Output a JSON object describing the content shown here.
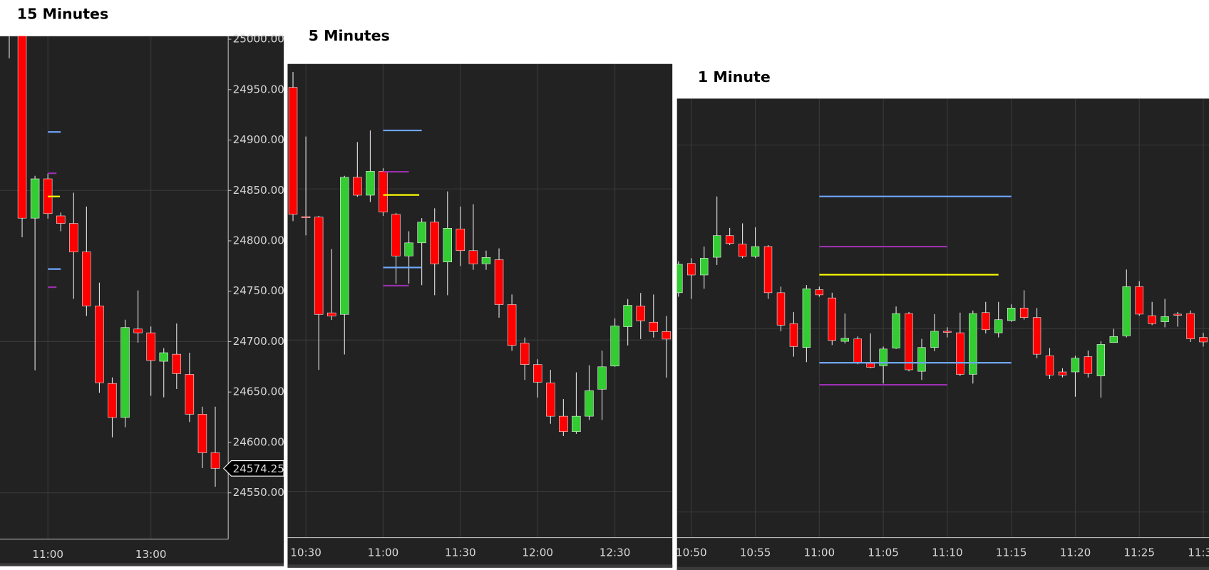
{
  "chart_data": [
    {
      "type": "candlestick",
      "title": "15 Minutes",
      "categories": [
        null,
        null,
        null,
        "11:00",
        null,
        null,
        null,
        null,
        null,
        null,
        null,
        "13:00",
        null,
        null,
        null,
        null,
        null
      ],
      "open": [
        25060,
        25020,
        24822.5,
        24861.5,
        24824.75,
        24817.25,
        24789,
        24735.5,
        24658.5,
        24624.75,
        24712.5,
        24708.75,
        24680.5,
        24687.5,
        24667.5,
        24628,
        24589.75
      ],
      "high": [
        25080,
        25030,
        24864.5,
        24866.75,
        24828,
        24847.75,
        24834,
        24758.5,
        24664.5,
        24721.75,
        24750.75,
        24715,
        24693.5,
        24718,
        24689,
        24635.5,
        24635.5
      ],
      "low": [
        24981,
        24803.5,
        24671.5,
        24822,
        24809.5,
        24742.5,
        24725.5,
        24649.25,
        24605,
        24615,
        24699,
        24646.25,
        24644.75,
        24653,
        24620.25,
        24574.5,
        24556
      ],
      "close": [
        25020,
        24822.5,
        24861.5,
        24827,
        24817.25,
        24789,
        24735.5,
        24659.25,
        24624.75,
        24714,
        24708.75,
        24681.25,
        24689,
        24668.25,
        24628,
        24589.75,
        24574.25
      ],
      "up_color": "#33cc33",
      "down_color": "#ff0000",
      "ylim": [
        24504,
        25003
      ],
      "yticks": [
        {
          "value": 24550,
          "label": "24550.00"
        },
        {
          "value": 24600,
          "label": "24600.00"
        },
        {
          "value": 24650,
          "label": "24650.00"
        },
        {
          "value": 24700,
          "label": "24700.00"
        },
        {
          "value": 24750,
          "label": "24750.00"
        },
        {
          "value": 24800,
          "label": "24800.00"
        },
        {
          "value": 24850,
          "label": "24850.00"
        },
        {
          "value": 24900,
          "label": "24900.00"
        },
        {
          "value": 24950,
          "label": "24950.00"
        },
        {
          "value": 25000,
          "label": "25000.00"
        }
      ],
      "grid_lines": [
        24550,
        24700,
        24850
      ],
      "last_price": 24574.25,
      "levels": [
        {
          "color": "#6ea8ff",
          "value": 24908,
          "x": [
            3,
            4
          ]
        },
        {
          "color": "#6ea8ff",
          "value": 24772,
          "x": [
            3,
            4
          ]
        },
        {
          "color": "#9b30b0",
          "value": 24867,
          "x": [
            3,
            3.67
          ]
        },
        {
          "color": "#9b30b0",
          "value": 24754,
          "x": [
            3,
            3.67
          ]
        },
        {
          "color": "#ffff00",
          "value": 24844,
          "x": [
            3,
            3.93
          ]
        }
      ]
    },
    {
      "type": "candlestick",
      "title": "5 Minutes",
      "categories": [
        null,
        "10:30",
        null,
        null,
        null,
        null,
        null,
        "11:00",
        null,
        null,
        null,
        null,
        null,
        "11:30",
        null,
        null,
        null,
        null,
        null,
        "12:00",
        null,
        null,
        null,
        null,
        null,
        "12:30",
        null,
        null,
        null,
        null
      ],
      "open": [
        24950.75,
        24822.5,
        24822,
        24727,
        24725.5,
        24861.5,
        24843.75,
        24867.5,
        24824.75,
        24783.5,
        24796.5,
        24817,
        24777.5,
        24810.25,
        24788.75,
        24775.75,
        24779.75,
        24735.25,
        24697,
        24675.75,
        24657.5,
        24624.5,
        24609.25,
        24624.5,
        24651.25,
        24674.25,
        24713.25,
        24733.75,
        24717.75,
        24708.5
      ],
      "high": [
        24966,
        24902,
        24823.25,
        24790.25,
        24863,
        24896.5,
        24908,
        24870.5,
        24826.25,
        24808,
        24821,
        24830.75,
        24847.5,
        24832.5,
        24834.75,
        24788.75,
        24791,
        24745.25,
        24702.5,
        24681,
        24670.5,
        24641.5,
        24668,
        24675,
        24689.5,
        24721.5,
        24740.75,
        24746.75,
        24745.25,
        24724
      ],
      "low": [
        24818,
        24804,
        24670.5,
        24720,
        24685.75,
        24842.25,
        24837,
        24823.25,
        24756,
        24756,
        24754.5,
        24744.5,
        24744.5,
        24773.5,
        24769.75,
        24769.75,
        24722.25,
        24689.5,
        24660.5,
        24643,
        24617,
        24604.75,
        24607,
        24620.75,
        24620.75,
        24673.5,
        24694.75,
        24701,
        24702.5,
        24662.75
      ],
      "close": [
        24824.75,
        24822,
        24725.5,
        24724,
        24861.5,
        24843.75,
        24867.5,
        24827,
        24783.5,
        24796.5,
        24817,
        24775.75,
        24811,
        24788.75,
        24775.75,
        24782,
        24735.25,
        24694.75,
        24675.75,
        24658.25,
        24624.5,
        24609.25,
        24624.5,
        24649.75,
        24673.5,
        24714,
        24734.5,
        24719.25,
        24708.5,
        24701
      ],
      "up_color": "#33cc33",
      "down_color": "#ff0000",
      "ylim": [
        24504,
        24974
      ],
      "grid_lines": [
        24550,
        24700,
        24850
      ],
      "levels": [
        {
          "color": "#6ea8ff",
          "value": 24908,
          "x": [
            7,
            10
          ]
        },
        {
          "color": "#6ea8ff",
          "value": 24772,
          "x": [
            7,
            10
          ]
        },
        {
          "color": "#9b30b0",
          "value": 24867,
          "x": [
            7,
            9
          ]
        },
        {
          "color": "#9b30b0",
          "value": 24754,
          "x": [
            7,
            9
          ]
        },
        {
          "color": "#ffff00",
          "value": 24844,
          "x": [
            7,
            9.8
          ]
        }
      ]
    },
    {
      "type": "candlestick",
      "title": "1 Minute",
      "categories": [
        null,
        "10:50",
        null,
        null,
        null,
        null,
        "10:55",
        null,
        null,
        null,
        null,
        "11:00",
        null,
        null,
        null,
        null,
        "11:05",
        null,
        null,
        null,
        null,
        "11:10",
        null,
        null,
        null,
        null,
        "11:15",
        null,
        null,
        null,
        null,
        "11:20",
        null,
        null,
        null,
        null,
        "11:25",
        null,
        null,
        null,
        null,
        "11:30"
      ],
      "open": [
        24829.25,
        24853.25,
        24843.75,
        24858.25,
        24876,
        24869,
        24859,
        24867,
        24829.25,
        24804,
        24784.5,
        24831.75,
        24825,
        24789.5,
        24791.5,
        24771.5,
        24769.5,
        24784,
        24812.25,
        24765,
        24784.5,
        24797.75,
        24796.5,
        24762.5,
        24813,
        24796.5,
        24806.5,
        24816.75,
        24809,
        24777.75,
        24764.5,
        24764.5,
        24777,
        24761.25,
        24788.5,
        24794,
        24834.25,
        24810.5,
        24805.5,
        24811.75,
        24812.25,
        24792.75
      ],
      "high": [
        24855,
        24857.5,
        24867,
        24908,
        24882.25,
        24886,
        24882.75,
        24868.25,
        24834.25,
        24813.5,
        24835.5,
        24834.25,
        24829.25,
        24812.25,
        24793.5,
        24796,
        24785.25,
        24818,
        24813.5,
        24791.5,
        24811.75,
        24801,
        24813,
        24814.75,
        24821.75,
        24821.75,
        24819.75,
        24831.25,
        24816.75,
        24784,
        24767.5,
        24777.75,
        24782,
        24789.5,
        24799.75,
        24848.25,
        24838.75,
        24821.75,
        24824.25,
        24813.5,
        24814.75,
        24796.5
      ],
      "low": [
        24826,
        24824.25,
        24832.5,
        24852,
        24868.25,
        24857.5,
        24857.5,
        24824.25,
        24797.75,
        24777,
        24772.5,
        24826,
        24786.5,
        24787.75,
        24770.75,
        24767.5,
        24755,
        24783.25,
        24765,
        24758,
        24781.5,
        24792.75,
        24761.25,
        24755,
        24796,
        24792.75,
        24805.5,
        24807.25,
        24775.75,
        24758.75,
        24760,
        24744.25,
        24760,
        24743.5,
        24788.5,
        24792.75,
        24810.5,
        24802.75,
        24801,
        24801.5,
        24789,
        24785.25
      ],
      "close": [
        24852.5,
        24843.75,
        24857.5,
        24876,
        24869.5,
        24859,
        24867,
        24829.25,
        24802.75,
        24785.25,
        24832.5,
        24827.5,
        24790.25,
        24792,
        24772.5,
        24768.25,
        24783.25,
        24812.25,
        24766.25,
        24784.5,
        24797.75,
        24797.25,
        24762.5,
        24812.25,
        24799,
        24807.25,
        24816.75,
        24809,
        24779,
        24762,
        24762,
        24775.75,
        24763.25,
        24787,
        24793.5,
        24834.25,
        24811.75,
        24804,
        24809.75,
        24811,
        24791.5,
        24789
      ],
      "up_color": "#33cc33",
      "down_color": "#ff0000",
      "ylim": [
        24629,
        24988
      ],
      "grid_lines": [
        24650,
        24800,
        24950
      ],
      "levels": [
        {
          "color": "#6ea8ff",
          "value": 24908,
          "x": [
            11,
            26
          ]
        },
        {
          "color": "#6ea8ff",
          "value": 24772,
          "x": [
            11,
            26
          ]
        },
        {
          "color": "#9b30b0",
          "value": 24867,
          "x": [
            11,
            21
          ]
        },
        {
          "color": "#9b30b0",
          "value": 24754,
          "x": [
            11,
            21
          ]
        },
        {
          "color": "#ffff00",
          "value": 24844,
          "x": [
            11,
            25
          ]
        }
      ]
    }
  ]
}
